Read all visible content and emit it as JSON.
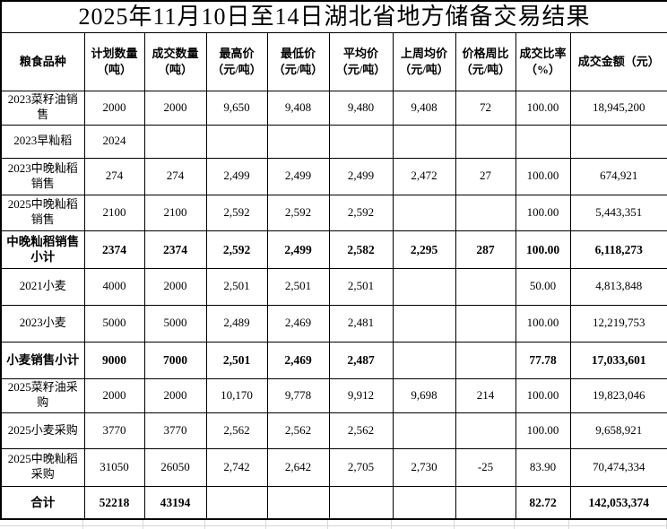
{
  "title": "2025年11月10日至14日湖北省地方储备交易结果",
  "colors": {
    "table_border": "#000000",
    "text": "#000000",
    "background": "#ffffff",
    "spreadsheet_gridline": "#d8d8d8"
  },
  "table": {
    "headers": [
      {
        "line1": "粮食品种",
        "line2": ""
      },
      {
        "line1": "计划数量",
        "line2": "（吨）"
      },
      {
        "line1": "成交数量",
        "line2": "（吨）"
      },
      {
        "line1": "最高价",
        "line2": "（元/吨）"
      },
      {
        "line1": "最低价",
        "line2": "（元/吨）"
      },
      {
        "line1": "平均价",
        "line2": "（元/吨）"
      },
      {
        "line1": "上周均价",
        "line2": "（元/吨）"
      },
      {
        "line1": "价格周比",
        "line2": "（元/吨）"
      },
      {
        "line1": "成交比率",
        "line2": "（%）"
      },
      {
        "line1": "成交金额（元）",
        "line2": ""
      }
    ],
    "rows": [
      {
        "name": "2023菜籽油销售",
        "emphasis": false,
        "values": [
          "2000",
          "2000",
          "9,650",
          "9,408",
          "9,480",
          "9,408",
          "72",
          "100.00",
          "18,945,200"
        ]
      },
      {
        "name": "2023早籼稻",
        "emphasis": false,
        "values": [
          "2024",
          "",
          "",
          "",
          "",
          "",
          "",
          "",
          ""
        ]
      },
      {
        "name": "2023中晚籼稻销售",
        "emphasis": false,
        "values": [
          "274",
          "274",
          "2,499",
          "2,499",
          "2,499",
          "2,472",
          "27",
          "100.00",
          "674,921"
        ]
      },
      {
        "name": "2025中晚籼稻销售",
        "emphasis": false,
        "values": [
          "2100",
          "2100",
          "2,592",
          "2,592",
          "2,592",
          "",
          "",
          "100.00",
          "5,443,351"
        ]
      },
      {
        "name": "中晚籼稻销售小计",
        "emphasis": true,
        "values": [
          "2374",
          "2374",
          "2,592",
          "2,499",
          "2,582",
          "2,295",
          "287",
          "100.00",
          "6,118,273"
        ]
      },
      {
        "name": "2021小麦",
        "emphasis": false,
        "values": [
          "4000",
          "2000",
          "2,501",
          "2,501",
          "2,501",
          "",
          "",
          "50.00",
          "4,813,848"
        ]
      },
      {
        "name": "2023小麦",
        "emphasis": false,
        "values": [
          "5000",
          "5000",
          "2,489",
          "2,469",
          "2,481",
          "",
          "",
          "100.00",
          "12,219,753"
        ]
      },
      {
        "name": "小麦销售小计",
        "emphasis": true,
        "values": [
          "9000",
          "7000",
          "2,501",
          "2,469",
          "2,487",
          "",
          "",
          "77.78",
          "17,033,601"
        ]
      },
      {
        "name": "2025菜籽油采购",
        "emphasis": false,
        "values": [
          "2000",
          "2000",
          "10,170",
          "9,778",
          "9,912",
          "9,698",
          "214",
          "100.00",
          "19,823,046"
        ]
      },
      {
        "name": "2025小麦采购",
        "emphasis": false,
        "values": [
          "3770",
          "3770",
          "2,562",
          "2,562",
          "2,562",
          "",
          "",
          "100.00",
          "9,658,921"
        ]
      },
      {
        "name": "2025中晚籼稻采购",
        "emphasis": false,
        "values": [
          "31050",
          "26050",
          "2,742",
          "2,642",
          "2,705",
          "2,730",
          "-25",
          "83.90",
          "70,474,334"
        ]
      },
      {
        "name": "合计",
        "emphasis": true,
        "values": [
          "52218",
          "43194",
          "",
          "",
          "",
          "",
          "",
          "82.72",
          "142,053,374"
        ]
      }
    ]
  },
  "chart_data": {
    "type": "table",
    "title": "2025年11月10日至14日湖北省地方储备交易结果",
    "columns": [
      "粮食品种",
      "计划数量（吨）",
      "成交数量（吨）",
      "最高价（元/吨）",
      "最低价（元/吨）",
      "平均价（元/吨）",
      "上周均价（元/吨）",
      "价格周比（元/吨）",
      "成交比率（%）",
      "成交金额（元）"
    ],
    "rows": [
      [
        "2023菜籽油销售",
        "2000",
        "2000",
        "9,650",
        "9,408",
        "9,480",
        "9,408",
        "72",
        "100.00",
        "18,945,200"
      ],
      [
        "2023早籼稻",
        "2024",
        "",
        "",
        "",
        "",
        "",
        "",
        "",
        ""
      ],
      [
        "2023中晚籼稻销售",
        "274",
        "274",
        "2,499",
        "2,499",
        "2,499",
        "2,472",
        "27",
        "100.00",
        "674,921"
      ],
      [
        "2025中晚籼稻销售",
        "2100",
        "2100",
        "2,592",
        "2,592",
        "2,592",
        "",
        "",
        "100.00",
        "5,443,351"
      ],
      [
        "中晚籼稻销售小计",
        "2374",
        "2374",
        "2,592",
        "2,499",
        "2,582",
        "2,295",
        "287",
        "100.00",
        "6,118,273"
      ],
      [
        "2021小麦",
        "4000",
        "2000",
        "2,501",
        "2,501",
        "2,501",
        "",
        "",
        "50.00",
        "4,813,848"
      ],
      [
        "2023小麦",
        "5000",
        "5000",
        "2,489",
        "2,469",
        "2,481",
        "",
        "",
        "100.00",
        "12,219,753"
      ],
      [
        "小麦销售小计",
        "9000",
        "7000",
        "2,501",
        "2,469",
        "2,487",
        "",
        "",
        "77.78",
        "17,033,601"
      ],
      [
        "2025菜籽油采购",
        "2000",
        "2000",
        "10,170",
        "9,778",
        "9,912",
        "9,698",
        "214",
        "100.00",
        "19,823,046"
      ],
      [
        "2025小麦采购",
        "3770",
        "3770",
        "2,562",
        "2,562",
        "2,562",
        "",
        "",
        "100.00",
        "9,658,921"
      ],
      [
        "2025中晚籼稻采购",
        "31050",
        "26050",
        "2,742",
        "2,642",
        "2,705",
        "2,730",
        "-25",
        "83.90",
        "70,474,334"
      ],
      [
        "合计",
        "52218",
        "43194",
        "",
        "",
        "",
        "",
        "",
        "82.72",
        "142,053,374"
      ]
    ]
  }
}
